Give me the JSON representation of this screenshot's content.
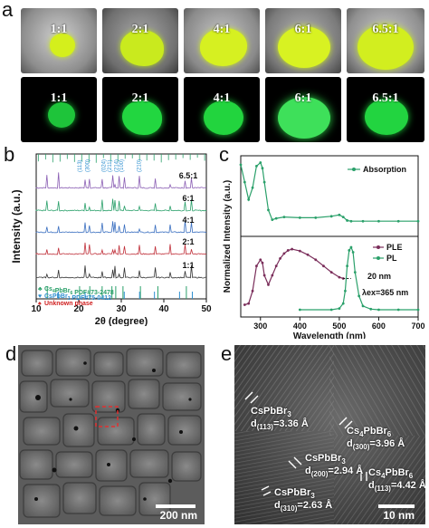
{
  "panels": {
    "a": "a",
    "b": "b",
    "c": "c",
    "d": "d",
    "e": "e"
  },
  "panel_a": {
    "top_row": [
      "1:1",
      "2:1",
      "4:1",
      "6:1",
      "6.5:1"
    ],
    "bottom_row": [
      "1:1",
      "2:1",
      "4:1",
      "6:1",
      "6.5:1"
    ],
    "colors": {
      "top_glow": "#d8f01e",
      "bottom_glow": "#1fd83a"
    }
  },
  "chart_data": [
    {
      "type": "line",
      "panel": "b",
      "xlabel": "2θ (degree)",
      "ylabel": "Intensity (a.u.)",
      "xlim": [
        10,
        50
      ],
      "xticks": [
        "10",
        "20",
        "30",
        "40",
        "50"
      ],
      "series": [
        {
          "name": "6.5:1",
          "color": "#8b5fb4"
        },
        {
          "name": "6:1",
          "color": "#2aa06a"
        },
        {
          "name": "4:1",
          "color": "#3a6fc0"
        },
        {
          "name": "2:1",
          "color": "#c0303a"
        },
        {
          "name": "1:1",
          "color": "#333333"
        }
      ],
      "reference_labels": [
        "(113)",
        "(300)",
        "(024)",
        "(211)",
        "(214)",
        "(210)",
        "(100)"
      ],
      "legend": [
        {
          "text": "Cs4PbBr6 PDF#73-2478",
          "color": "#2aa06a",
          "marker": "♣"
        },
        {
          "text": "CsPbBr3 PDF#75-0412",
          "color": "#2e8fd0",
          "marker": "♥"
        },
        {
          "text": "Unknown phase",
          "color": "#d02020",
          "marker": "♠"
        }
      ],
      "legend_parts": [
        {
          "base": "Cs",
          "sub": "4",
          "mid": "PbBr",
          "sub2": "6",
          "rest": " PDF#73-2478"
        },
        {
          "base": "CsPbBr",
          "sub": "3",
          "mid": "",
          "sub2": "",
          "rest": " PDF#75-0412"
        },
        {
          "base": "Unknown phase",
          "sub": "",
          "mid": "",
          "sub2": "",
          "rest": ""
        }
      ]
    },
    {
      "type": "line",
      "panel": "c",
      "xlabel": "Wavelength (nm)",
      "ylabel": "Normalized Intensity (a.u.)",
      "xlim": [
        250,
        700
      ],
      "xticks": [
        "300",
        "400",
        "500",
        "600",
        "700"
      ],
      "series": [
        {
          "name": "Absorption",
          "color": "#2aa06a",
          "x": [
            250,
            260,
            270,
            280,
            290,
            300,
            305,
            310,
            320,
            330,
            340,
            360,
            400,
            440,
            480,
            500,
            510,
            520,
            530,
            560,
            600,
            650,
            700
          ],
          "y": [
            0.95,
            0.7,
            0.45,
            0.62,
            0.93,
            0.98,
            0.9,
            0.7,
            0.3,
            0.16,
            0.18,
            0.2,
            0.19,
            0.19,
            0.21,
            0.23,
            0.2,
            0.15,
            0.14,
            0.14,
            0.14,
            0.14,
            0.14
          ]
        },
        {
          "name": "PLE",
          "color": "#7a2d5a",
          "x": [
            260,
            270,
            280,
            290,
            300,
            305,
            310,
            320,
            330,
            340,
            350,
            360,
            370,
            380,
            400,
            420,
            440,
            460,
            480,
            500,
            510
          ],
          "y": [
            0.08,
            0.1,
            0.3,
            0.7,
            0.8,
            0.75,
            0.55,
            0.4,
            0.55,
            0.7,
            0.82,
            0.9,
            0.95,
            0.97,
            0.94,
            0.88,
            0.8,
            0.7,
            0.6,
            0.52,
            0.5
          ]
        },
        {
          "name": "PL",
          "color": "#2aa06a",
          "x": [
            400,
            480,
            500,
            510,
            515,
            520,
            525,
            530,
            535,
            540,
            550,
            560,
            580,
            600,
            650,
            700
          ],
          "y": [
            0.0,
            0.0,
            0.02,
            0.1,
            0.3,
            0.7,
            0.95,
            1.0,
            0.92,
            0.6,
            0.22,
            0.06,
            0.01,
            0.0,
            0.0,
            0.0
          ]
        }
      ],
      "annotations": [
        "20 nm",
        "λex=365 nm"
      ]
    }
  ],
  "panel_d": {
    "scalebar": "200 nm"
  },
  "panel_e": {
    "scalebar": "10 nm",
    "labels": [
      {
        "phase_base": "CsPbBr",
        "phase_sub": "3",
        "phase_mid": "",
        "phase_sub2": "",
        "d_plane": "(113)",
        "d_val": "=3.36 Å"
      },
      {
        "phase_base": "Cs",
        "phase_sub": "4",
        "phase_mid": "PbBr",
        "phase_sub2": "6",
        "d_plane": "(300)",
        "d_val": "=3.96 Å"
      },
      {
        "phase_base": "CsPbBr",
        "phase_sub": "3",
        "phase_mid": "",
        "phase_sub2": "",
        "d_plane": "(200)",
        "d_val": "=2.94 Å"
      },
      {
        "phase_base": "CsPbBr",
        "phase_sub": "3",
        "phase_mid": "",
        "phase_sub2": "",
        "d_plane": "(310)",
        "d_val": "=2.63 Å"
      },
      {
        "phase_base": "Cs",
        "phase_sub": "4",
        "phase_mid": "PbBr",
        "phase_sub2": "6",
        "d_plane": "(113)",
        "d_val": "=4.42 Å"
      }
    ]
  }
}
